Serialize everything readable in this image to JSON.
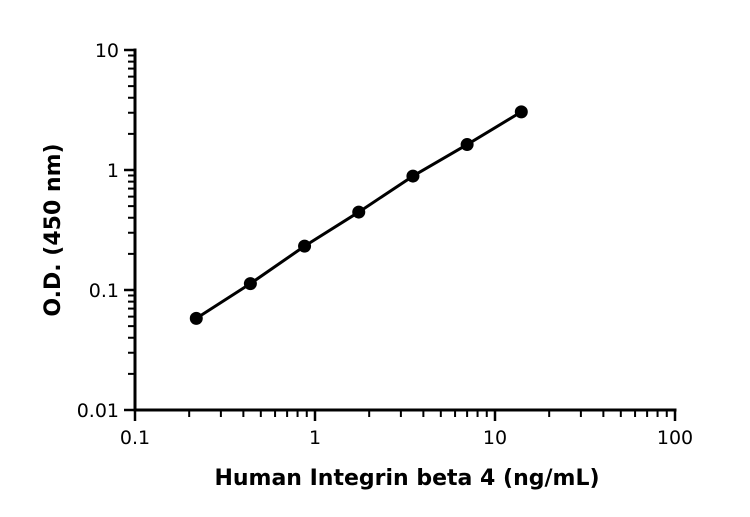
{
  "chart_data": {
    "type": "scatter",
    "title": "",
    "xlabel": "Human Integrin beta 4 (ng/mL)",
    "ylabel": "O.D. (450 nm)",
    "xscale": "log",
    "yscale": "log",
    "xlim": [
      0.1,
      100
    ],
    "ylim": [
      0.01,
      10
    ],
    "x_ticks": [
      0.1,
      1,
      10,
      100
    ],
    "x_tick_labels": [
      "0.1",
      "1",
      "10",
      "100"
    ],
    "y_ticks": [
      0.01,
      0.1,
      1,
      10
    ],
    "y_tick_labels": [
      "0.01",
      "0.1",
      "1",
      "10"
    ],
    "grid": false,
    "legend": "none",
    "series": [
      {
        "x": [
          0.219,
          0.4375,
          0.875,
          1.75,
          3.5,
          7,
          14
        ],
        "y": [
          0.058,
          0.113,
          0.232,
          0.446,
          0.89,
          1.63,
          3.05
        ],
        "marker": "circle",
        "line": "fit",
        "color": "#000000"
      }
    ]
  }
}
